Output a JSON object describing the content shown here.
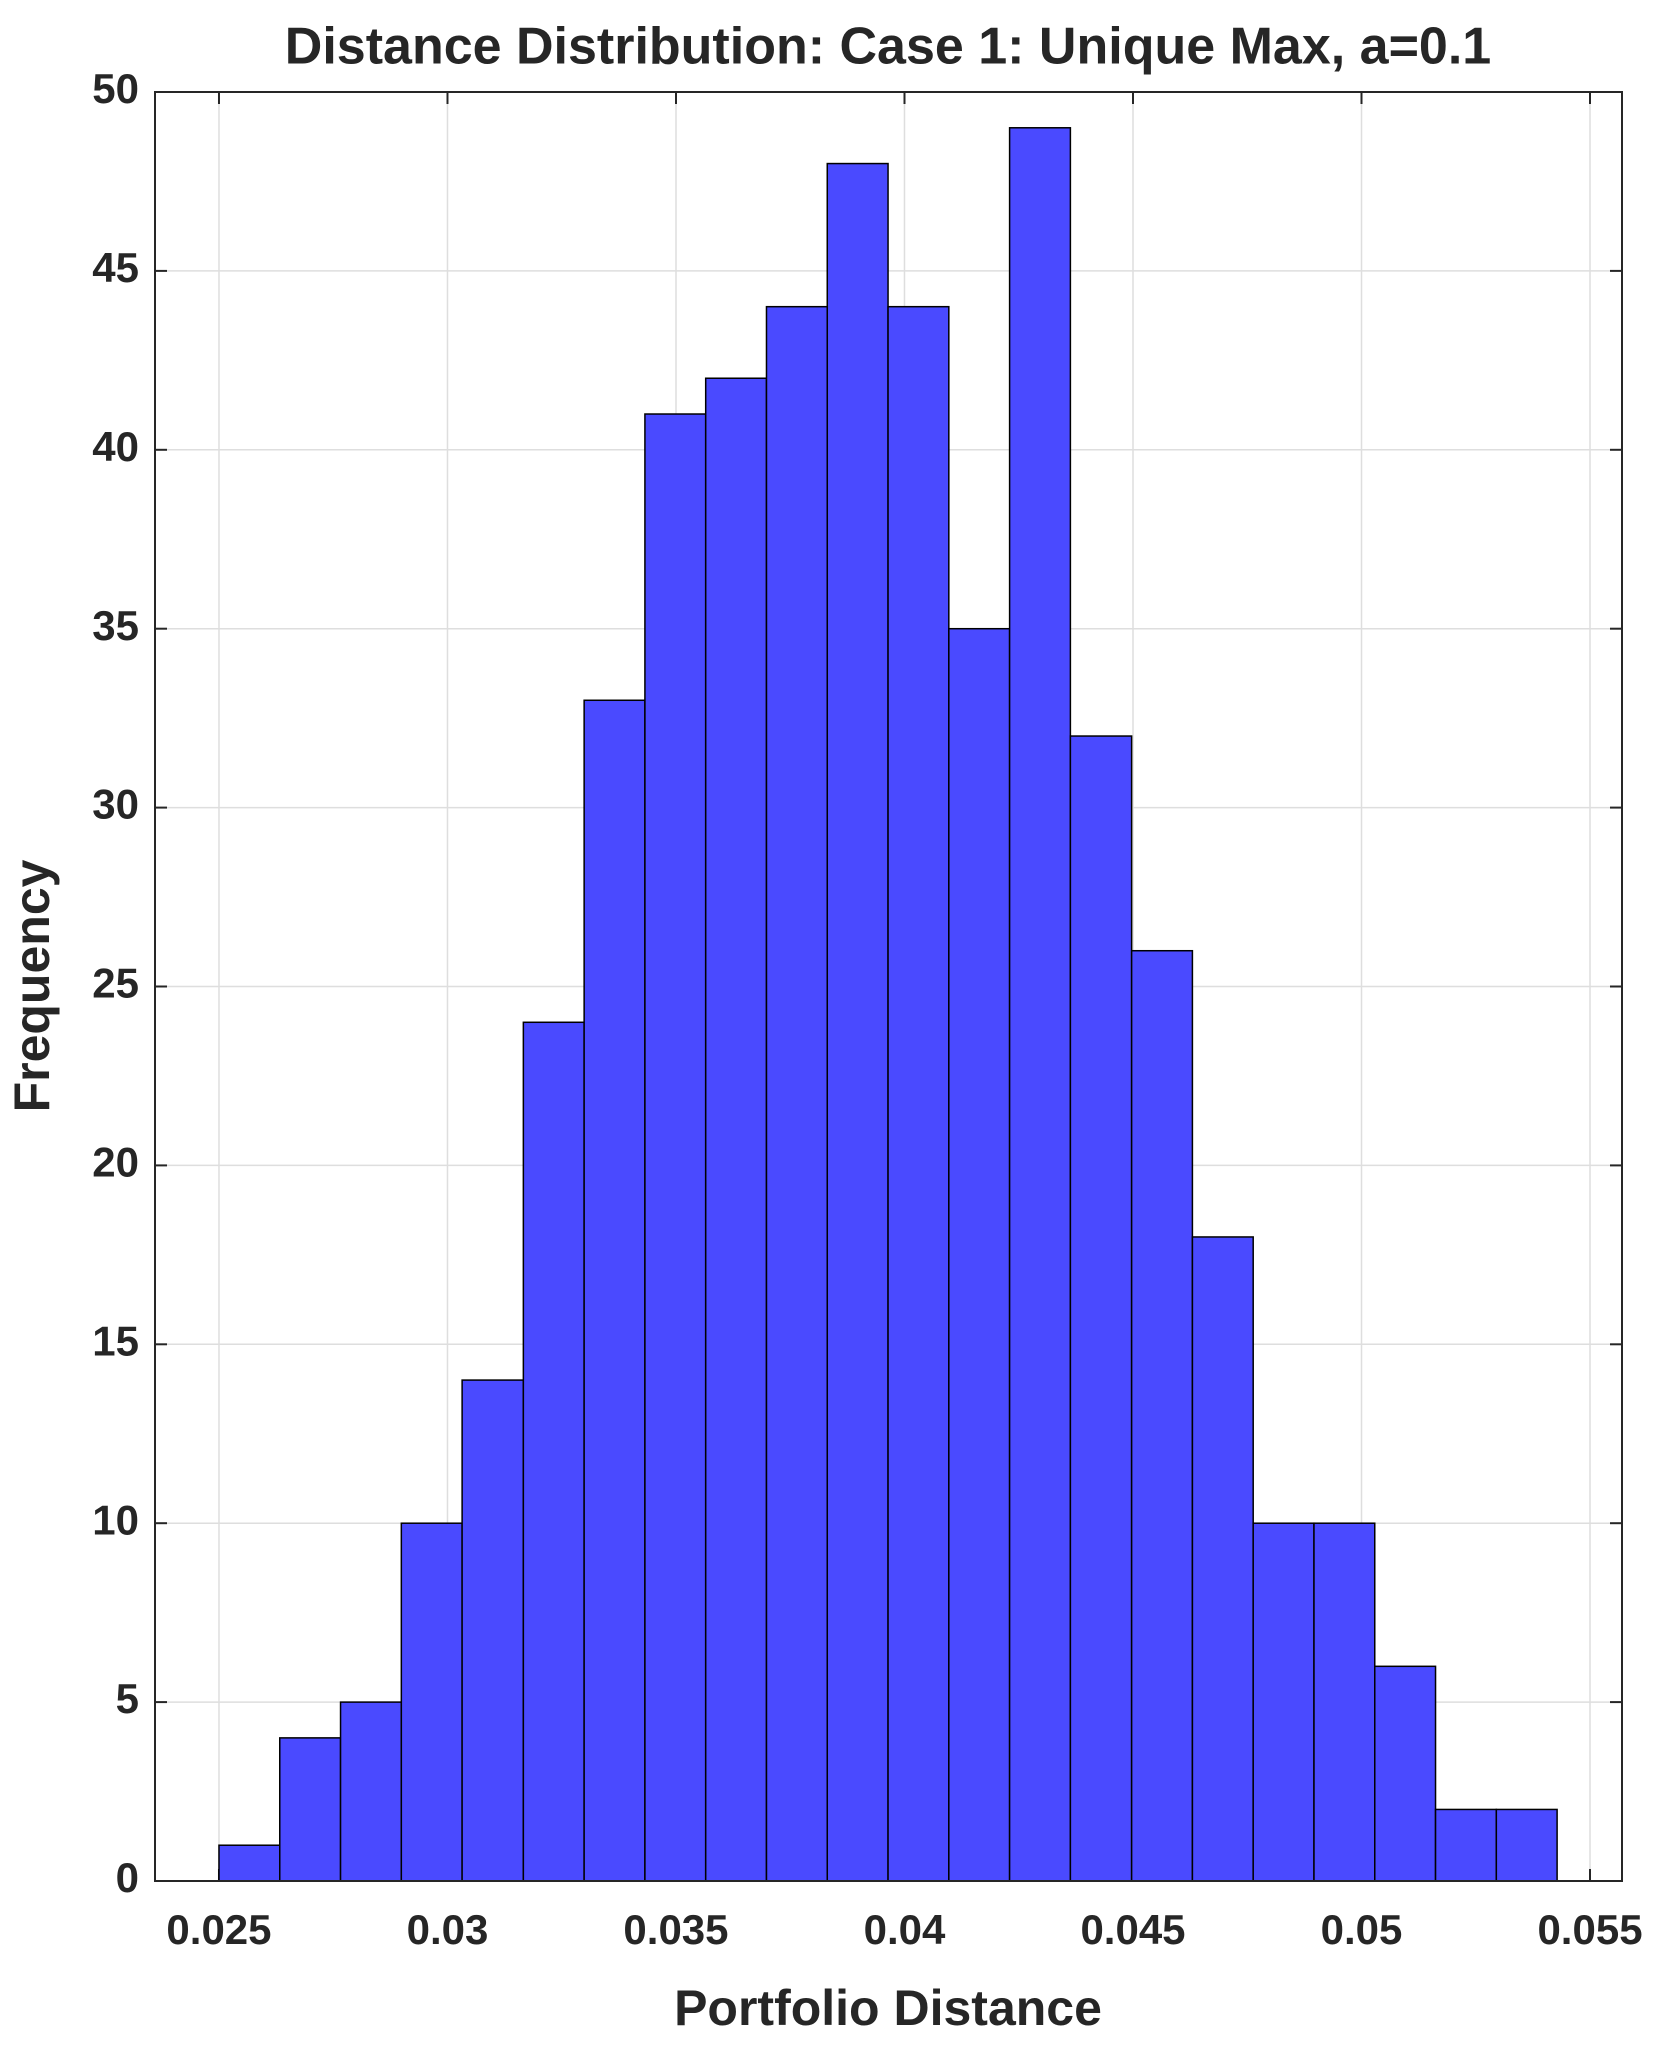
{
  "chart_data": {
    "type": "histogram",
    "title": "Distance Distribution: Case 1: Unique Max, a=0.1",
    "x_label": "Portfolio Distance",
    "y_label": "Frequency",
    "bins": [
      0.025,
      0.02633,
      0.02766,
      0.02899,
      0.03032,
      0.03166,
      0.03299,
      0.03432,
      0.03565,
      0.03698,
      0.03831,
      0.03964,
      0.04097,
      0.0423,
      0.04363,
      0.04497,
      0.0463,
      0.04763,
      0.04896,
      0.05029,
      0.05162,
      0.05295,
      0.05428
    ],
    "counts": [
      1,
      4,
      5,
      10,
      14,
      24,
      33,
      41,
      42,
      44,
      48,
      44,
      35,
      49,
      32,
      26,
      18,
      10,
      10,
      6,
      2,
      2
    ],
    "color": "#4a4aff",
    "xlim": [
      0.0236,
      0.0557
    ],
    "xticks": [
      0.025,
      0.03,
      0.035,
      0.04,
      0.045,
      0.05,
      0.055
    ],
    "ylim": [
      0,
      50
    ],
    "yticks": [
      0,
      5,
      10,
      15,
      20,
      25,
      30,
      35,
      40,
      45,
      50
    ],
    "grid": true
  }
}
